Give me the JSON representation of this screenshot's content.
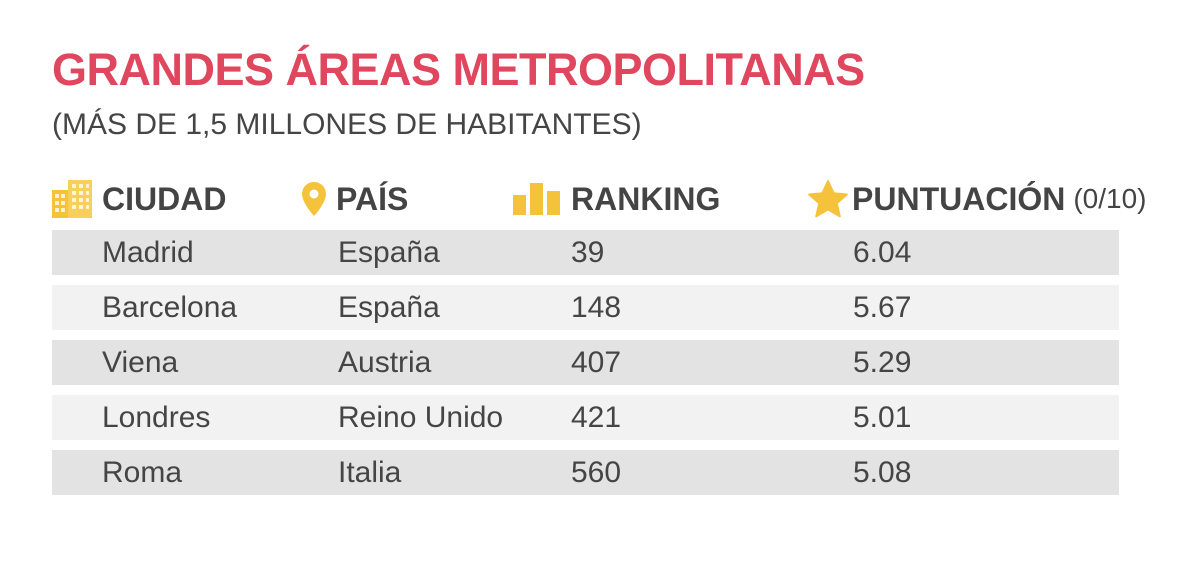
{
  "title": "GRANDES ÁREAS METROPOLITANAS",
  "subtitle": "(MÁS DE 1,5 MILLONES DE HABITANTES)",
  "colors": {
    "title": "#e0475e",
    "icon": "#f5c33b",
    "row_dark": "#e3e3e3",
    "row_light": "#f2f2f2"
  },
  "columns": {
    "ciudad": {
      "label": "CIUDAD",
      "icon": "building-icon"
    },
    "pais": {
      "label": "PAÍS",
      "icon": "map-pin-icon"
    },
    "ranking": {
      "label": "RANKING",
      "icon": "bar-chart-icon"
    },
    "puntuacion": {
      "label": "PUNTUACIÓN",
      "unit": "(0/10)",
      "icon": "star-icon"
    }
  },
  "chart_data": {
    "type": "table",
    "title": "GRANDES ÁREAS METROPOLITANAS",
    "subtitle": "(MÁS DE 1,5 MILLONES DE HABITANTES)",
    "headers": [
      "CIUDAD",
      "PAÍS",
      "RANKING",
      "PUNTUACIÓN (0/10)"
    ],
    "rows": [
      {
        "ciudad": "Madrid",
        "pais": "España",
        "ranking": "39",
        "puntuacion": "6.04"
      },
      {
        "ciudad": "Barcelona",
        "pais": "España",
        "ranking": "148",
        "puntuacion": "5.67"
      },
      {
        "ciudad": "Viena",
        "pais": "Austria",
        "ranking": "407",
        "puntuacion": "5.29"
      },
      {
        "ciudad": "Londres",
        "pais": "Reino Unido",
        "ranking": "421",
        "puntuacion": "5.01"
      },
      {
        "ciudad": "Roma",
        "pais": "Italia",
        "ranking": "560",
        "puntuacion": "5.08"
      }
    ]
  }
}
